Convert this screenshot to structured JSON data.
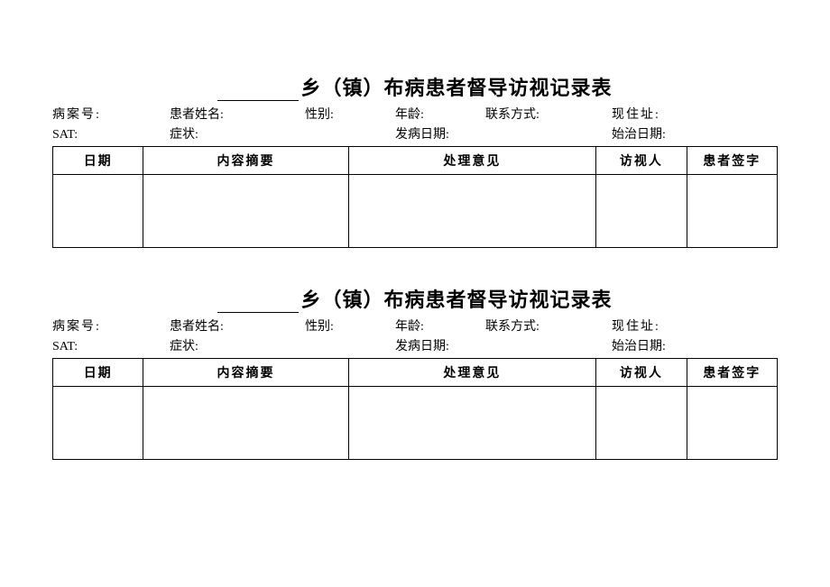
{
  "form": {
    "title_suffix": "乡（镇）布病患者督导访视记录表",
    "info_row1": {
      "case_no": "病案号:",
      "patient_name": "患者姓名:",
      "gender": "性别:",
      "age": "年龄:",
      "contact": "联系方式:",
      "address": "现住址:"
    },
    "info_row2": {
      "sat": "SAT:",
      "symptom": "症状:",
      "onset_date": "发病日期:",
      "treat_date": "始治日期:"
    },
    "table_headers": {
      "date": "日期",
      "summary": "内容摘要",
      "opinion": "处理意见",
      "visitor": "访视人",
      "sign": "患者签字"
    }
  }
}
